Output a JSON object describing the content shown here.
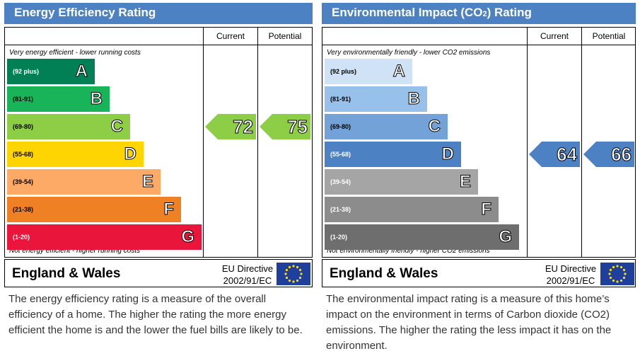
{
  "chart_data": [
    {
      "type": "bar",
      "title": "Energy Efficiency Rating",
      "columns": [
        "Current",
        "Potential"
      ],
      "top_note": "Very energy efficient - lower running costs",
      "bottom_note": "Not energy efficient - higher running costs",
      "bands": [
        {
          "range": "(92 plus)",
          "letter": "A",
          "color": "#008054"
        },
        {
          "range": "(81-91)",
          "letter": "B",
          "color": "#19b459"
        },
        {
          "range": "(69-80)",
          "letter": "C",
          "color": "#8dce46"
        },
        {
          "range": "(55-68)",
          "letter": "D",
          "color": "#ffd500"
        },
        {
          "range": "(39-54)",
          "letter": "E",
          "color": "#fcaa65"
        },
        {
          "range": "(21-38)",
          "letter": "F",
          "color": "#ef8023"
        },
        {
          "range": "(1-20)",
          "letter": "G",
          "color": "#e9153b"
        }
      ],
      "current": {
        "value": 72,
        "band": "C",
        "color": "#8dce46"
      },
      "potential": {
        "value": 75,
        "band": "C",
        "color": "#8dce46"
      },
      "region": "England & Wales",
      "directive": [
        "EU Directive",
        "2002/91/EC"
      ],
      "description": "The energy efficiency rating is a measure of the overall efficiency of a home. The higher the rating the more energy efficient the home is and the lower the fuel bills are likely to be."
    },
    {
      "type": "bar",
      "title": "Environmental Impact (CO2) Rating",
      "columns": [
        "Current",
        "Potential"
      ],
      "top_note": "Very environmentally friendly - lower CO2 emissions",
      "bottom_note": "Not environmentally friendly - higher CO2 emissions",
      "bands": [
        {
          "range": "(92 plus)",
          "letter": "A",
          "color": "#cfe2f6"
        },
        {
          "range": "(81-91)",
          "letter": "B",
          "color": "#97c0ea"
        },
        {
          "range": "(69-80)",
          "letter": "C",
          "color": "#73a2d9"
        },
        {
          "range": "(55-68)",
          "letter": "D",
          "color": "#4c82c4"
        },
        {
          "range": "(39-54)",
          "letter": "E",
          "color": "#a5a5a5"
        },
        {
          "range": "(21-38)",
          "letter": "F",
          "color": "#8c8c8c"
        },
        {
          "range": "(1-20)",
          "letter": "G",
          "color": "#6e6e6e"
        }
      ],
      "current": {
        "value": 64,
        "band": "D",
        "color": "#4c82c4"
      },
      "potential": {
        "value": 66,
        "band": "D",
        "color": "#4c82c4"
      },
      "region": "England & Wales",
      "directive": [
        "EU Directive",
        "2002/91/EC"
      ],
      "description": "The environmental impact rating is a measure of this home’s impact on the environment in terms of Carbon dioxide (CO2) emissions. The higher the rating the less impact it has on the environment."
    }
  ]
}
